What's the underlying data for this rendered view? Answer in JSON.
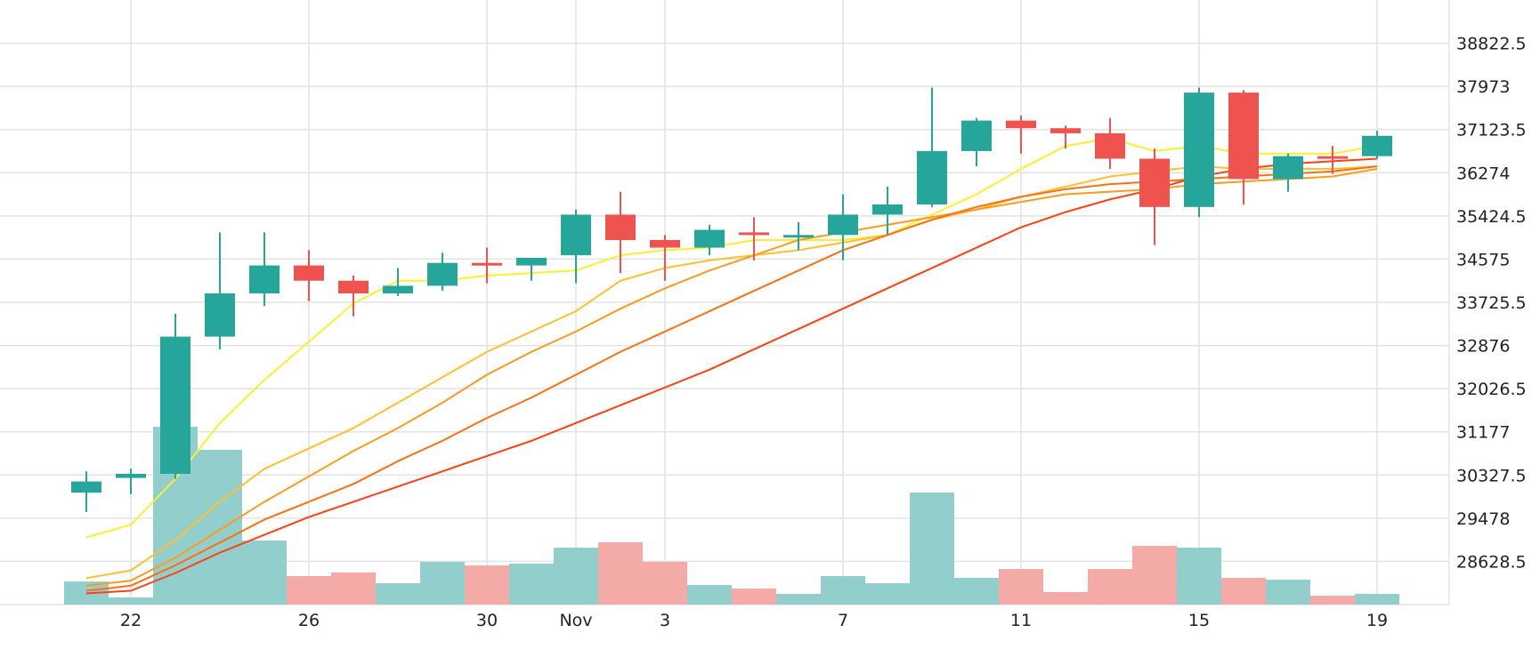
{
  "chart_data": {
    "type": "candlestick",
    "title": "",
    "x_ticks": [
      {
        "label": "22",
        "index": 1
      },
      {
        "label": "26",
        "index": 5
      },
      {
        "label": "30",
        "index": 9
      },
      {
        "label": "Nov",
        "index": 11
      },
      {
        "label": "3",
        "index": 13
      },
      {
        "label": "7",
        "index": 17
      },
      {
        "label": "11",
        "index": 21
      },
      {
        "label": "15",
        "index": 25
      },
      {
        "label": "19",
        "index": 29
      }
    ],
    "y_ticks": [
      "38822.5",
      "37973",
      "37123.5",
      "36274",
      "35424.5",
      "34575",
      "33725.5",
      "32876",
      "32026.5",
      "31177",
      "30327.5",
      "29478",
      "28628.5"
    ],
    "ylim": [
      27779,
      39672
    ],
    "grid": true,
    "y_axis_position": "right",
    "colors": {
      "up": "#26a69a",
      "down": "#ef5350",
      "up_volume": "#92cfcc",
      "down_volume": "#f4aaa7",
      "grid": "#e3e3e3",
      "ma_lines": [
        "#ffee2e",
        "#ffc02c",
        "#ff9a1c",
        "#ff6f10",
        "#ff4010"
      ]
    },
    "candles": [
      {
        "o": 29980,
        "h": 30400,
        "l": 29600,
        "c": 30200
      },
      {
        "o": 30270,
        "h": 30450,
        "l": 29950,
        "c": 30350
      },
      {
        "o": 30350,
        "h": 33500,
        "l": 30250,
        "c": 33050
      },
      {
        "o": 33050,
        "h": 35100,
        "l": 32800,
        "c": 33900
      },
      {
        "o": 33900,
        "h": 35100,
        "l": 33650,
        "c": 34450
      },
      {
        "o": 34450,
        "h": 34750,
        "l": 33750,
        "c": 34150
      },
      {
        "o": 34150,
        "h": 34250,
        "l": 33450,
        "c": 33900
      },
      {
        "o": 33900,
        "h": 34400,
        "l": 33850,
        "c": 34050
      },
      {
        "o": 34050,
        "h": 34700,
        "l": 33950,
        "c": 34500
      },
      {
        "o": 34500,
        "h": 34800,
        "l": 34100,
        "c": 34450
      },
      {
        "o": 34450,
        "h": 34600,
        "l": 34150,
        "c": 34600
      },
      {
        "o": 34650,
        "h": 35550,
        "l": 34100,
        "c": 35450
      },
      {
        "o": 35450,
        "h": 35900,
        "l": 34300,
        "c": 34950
      },
      {
        "o": 34950,
        "h": 35050,
        "l": 34150,
        "c": 34800
      },
      {
        "o": 34800,
        "h": 35250,
        "l": 34650,
        "c": 35150
      },
      {
        "o": 35100,
        "h": 35400,
        "l": 34550,
        "c": 35050
      },
      {
        "o": 35050,
        "h": 35300,
        "l": 34750,
        "c": 35050
      },
      {
        "o": 35050,
        "h": 35850,
        "l": 34550,
        "c": 35450
      },
      {
        "o": 35450,
        "h": 36000,
        "l": 35050,
        "c": 35650
      },
      {
        "o": 35650,
        "h": 37950,
        "l": 35600,
        "c": 36700
      },
      {
        "o": 36700,
        "h": 37350,
        "l": 36400,
        "c": 37300
      },
      {
        "o": 37300,
        "h": 37400,
        "l": 36650,
        "c": 37150
      },
      {
        "o": 37150,
        "h": 37200,
        "l": 36750,
        "c": 37050
      },
      {
        "o": 37050,
        "h": 37350,
        "l": 36350,
        "c": 36550
      },
      {
        "o": 36550,
        "h": 36750,
        "l": 34850,
        "c": 35600
      },
      {
        "o": 35600,
        "h": 37950,
        "l": 35400,
        "c": 37850
      },
      {
        "o": 37850,
        "h": 37900,
        "l": 35650,
        "c": 36150
      },
      {
        "o": 36150,
        "h": 36650,
        "l": 35900,
        "c": 36600
      },
      {
        "o": 36600,
        "h": 36800,
        "l": 36250,
        "c": 36550
      },
      {
        "o": 36600,
        "h": 37100,
        "l": 36550,
        "c": 37000
      }
    ],
    "volume": {
      "ylim": [
        0,
        100
      ],
      "values": [
        13,
        4,
        100,
        87,
        36,
        16,
        18,
        12,
        24,
        22,
        23,
        32,
        35,
        24,
        11,
        9,
        6,
        16,
        12,
        63,
        15,
        20,
        7,
        20,
        33,
        32,
        15,
        14,
        5,
        6
      ]
    },
    "series": [
      {
        "values": [
          29100,
          29350,
          30250,
          31350,
          32200,
          32950,
          33700,
          34150,
          34150,
          34250,
          34300,
          34350,
          34650,
          34750,
          34800,
          34950,
          34950,
          34950,
          35050,
          35450,
          35850,
          36350,
          36800,
          36950,
          36700,
          36800,
          36650,
          36650,
          36650,
          36800
        ]
      },
      {
        "values": [
          28300,
          28450,
          29050,
          29800,
          30450,
          30850,
          31250,
          31750,
          32250,
          32750,
          33150,
          33550,
          34150,
          34400,
          34550,
          34650,
          34750,
          34900,
          35050,
          35350,
          35550,
          35800,
          36000,
          36200,
          36300,
          36400,
          36350,
          36350,
          36350,
          36400
        ]
      },
      {
        "values": [
          28150,
          28250,
          28700,
          29250,
          29800,
          30300,
          30800,
          31250,
          31750,
          32300,
          32750,
          33150,
          33600,
          34000,
          34350,
          34650,
          34950,
          35100,
          35250,
          35400,
          35550,
          35700,
          35850,
          35900,
          35950,
          36050,
          36100,
          36150,
          36200,
          36350
        ]
      },
      {
        "values": [
          28050,
          28150,
          28550,
          29000,
          29450,
          29800,
          30150,
          30600,
          31000,
          31450,
          31850,
          32300,
          32750,
          33150,
          33550,
          33950,
          34350,
          34750,
          35050,
          35350,
          35600,
          35800,
          35950,
          36050,
          36100,
          36150,
          36200,
          36250,
          36300,
          36400
        ]
      },
      {
        "values": [
          28000,
          28050,
          28400,
          28800,
          29150,
          29500,
          29800,
          30100,
          30400,
          30700,
          31000,
          31350,
          31700,
          32050,
          32400,
          32800,
          33200,
          33600,
          34000,
          34400,
          34800,
          35200,
          35500,
          35750,
          35950,
          36200,
          36350,
          36450,
          36500,
          36550
        ]
      }
    ]
  }
}
